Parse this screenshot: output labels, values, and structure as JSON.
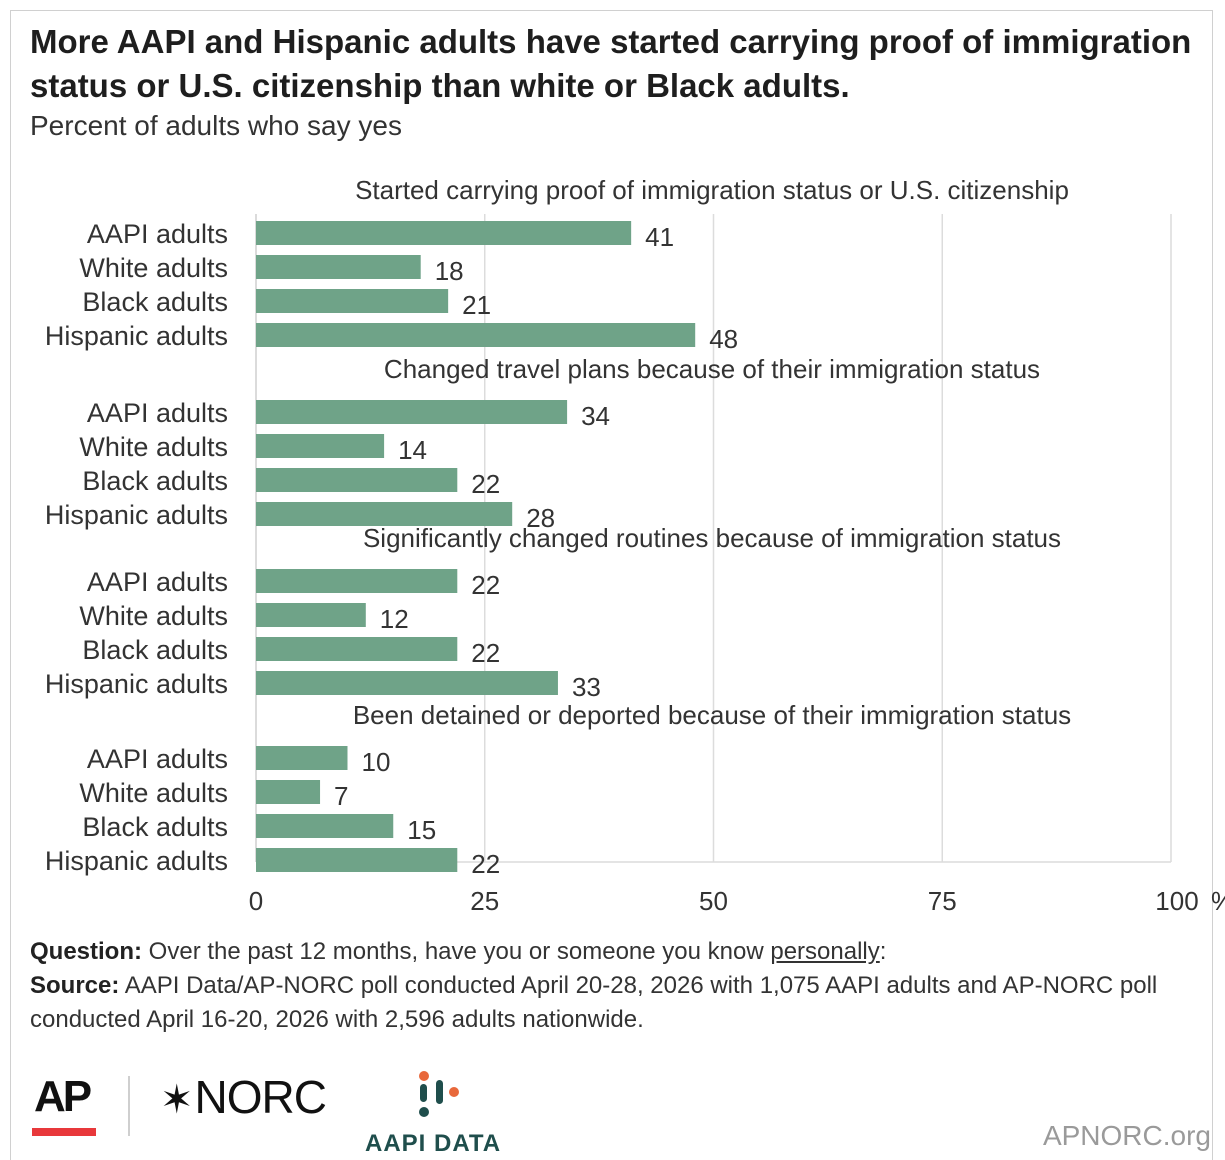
{
  "title": "More AAPI and Hispanic adults have started carrying proof of immigration status or U.S. citizenship than white or Black adults.",
  "subtitle": "Percent of adults who say yes",
  "chart_data": {
    "type": "bar",
    "orientation": "horizontal",
    "xlim": [
      0,
      100
    ],
    "x_ticks": [
      "0",
      "25",
      "50",
      "75",
      "100"
    ],
    "x_unit": "%",
    "grid": true,
    "bar_color": "#6fa388",
    "groups": [
      {
        "title": "Started carrying proof of immigration status or U.S. citizenship",
        "categories": [
          "AAPI adults",
          "White adults",
          "Black adults",
          "Hispanic adults"
        ],
        "values": [
          41,
          18,
          21,
          48
        ]
      },
      {
        "title": "Changed travel plans because of their immigration status",
        "categories": [
          "AAPI adults",
          "White adults",
          "Black adults",
          "Hispanic adults"
        ],
        "values": [
          34,
          14,
          22,
          28
        ]
      },
      {
        "title": "Significantly changed routines because of immigration status",
        "categories": [
          "AAPI adults",
          "White adults",
          "Black adults",
          "Hispanic adults"
        ],
        "values": [
          22,
          12,
          22,
          33
        ]
      },
      {
        "title": "Been detained or deported because of their immigration status",
        "categories": [
          "AAPI adults",
          "White adults",
          "Black adults",
          "Hispanic adults"
        ],
        "values": [
          10,
          7,
          15,
          22
        ]
      }
    ]
  },
  "notes": {
    "question_label": "Question:",
    "question_text": "Over the past 12 months, have you or someone you know",
    "question_emphasis": "personally",
    "question_end": ":",
    "source_label": "Source:",
    "source_text": "AAPI Data/AP-NORC poll conducted April 20-28, 2026 with 1,075 AAPI adults and AP-NORC poll conducted April 16-20, 2026 with 2,596 adults nationwide."
  },
  "logos": {
    "ap": "AP",
    "norc": "NORC",
    "aapi": "AAPI DATA",
    "site": "APNORC.org"
  }
}
